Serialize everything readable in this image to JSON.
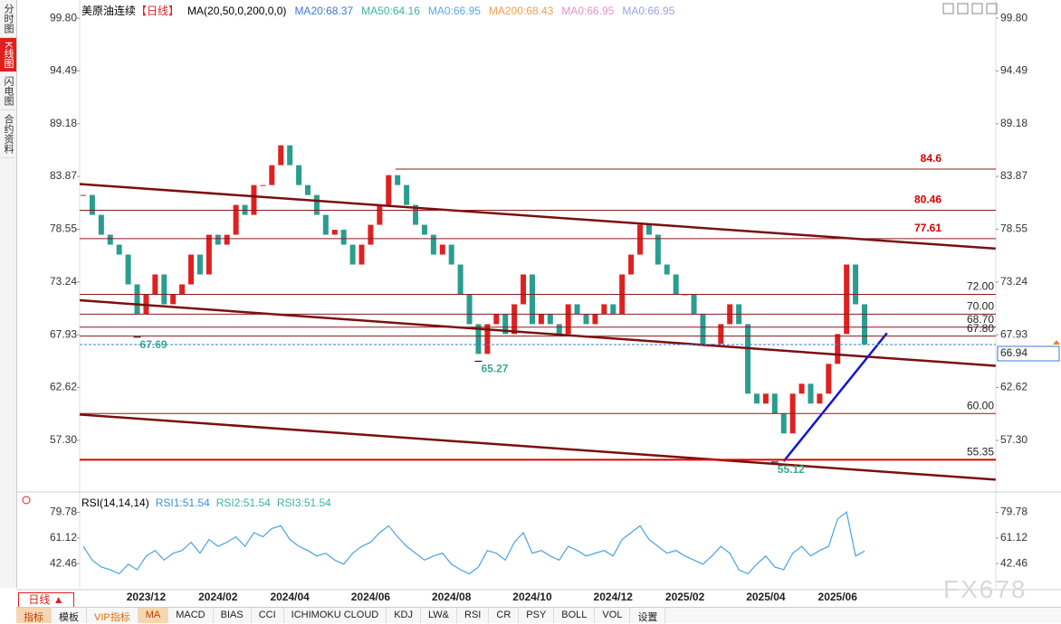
{
  "sidebar_tabs": [
    "分时图",
    "K线图",
    "闪电图",
    "合约资料"
  ],
  "header": {
    "title": "美原油连续",
    "period": "【日线】",
    "indicator": "MA(20,50,0,200,0,0)",
    "legend": [
      {
        "text": "MA20:68.37",
        "color": "#3a7bd5"
      },
      {
        "text": "MA50:64.16",
        "color": "#3cb3a0"
      },
      {
        "text": "MA0:66.95",
        "color": "#5aa8e8"
      },
      {
        "text": "MA200:68.43",
        "color": "#f0a050"
      },
      {
        "text": "MA0:66.95",
        "color": "#e890d0"
      },
      {
        "text": "MA0:66.95",
        "color": "#a0a0e8"
      }
    ]
  },
  "rsi_header": {
    "title": "RSI(14,14,14)",
    "legend": [
      {
        "text": "RSI1:51.54",
        "color": "#3a8fd5"
      },
      {
        "text": "RSI2:51.54",
        "color": "#3cb3a0"
      },
      {
        "text": "RSI3:51.54",
        "color": "#3cb3a0"
      }
    ]
  },
  "period_button": "日线 ▲",
  "toolbar": [
    "指标",
    "模板",
    "VIP指标",
    "MA",
    "MACD",
    "BIAS",
    "CCI",
    "ICHIMOKU CLOUD",
    "KDJ",
    "LW&",
    "RSI",
    "CR",
    "PSY",
    "BOLL",
    "VOL",
    "设置"
  ],
  "watermark": "FX678",
  "chart_data": [
    {
      "type": "candlestick",
      "up_color": "#e02020",
      "down_color": "#2a9d8f",
      "categories": [
        null,
        null,
        null,
        null,
        null,
        null,
        null,
        "2023/12",
        null,
        null,
        null,
        null,
        null,
        null,
        null,
        "2024/02",
        null,
        null,
        null,
        null,
        null,
        null,
        null,
        "2024/04",
        null,
        null,
        null,
        null,
        null,
        null,
        null,
        null,
        "2024/06",
        null,
        null,
        null,
        null,
        null,
        null,
        null,
        null,
        "2024/08",
        null,
        null,
        null,
        null,
        null,
        null,
        null,
        null,
        "2024/10",
        null,
        null,
        null,
        null,
        null,
        null,
        null,
        null,
        "2024/12",
        null,
        null,
        null,
        null,
        null,
        null,
        null,
        "2025/02",
        null,
        null,
        null,
        null,
        null,
        null,
        null,
        null,
        "2025/04",
        null,
        null,
        null,
        null,
        null,
        null,
        null,
        "2025/06",
        null,
        null,
        null
      ],
      "closes": [
        82,
        80,
        78,
        77,
        76,
        73,
        70,
        72,
        74,
        71,
        72,
        73,
        76,
        74,
        78,
        77,
        78,
        81,
        80,
        83,
        83,
        85,
        87,
        85,
        83,
        82,
        80,
        78,
        78.5,
        77,
        75,
        77,
        79,
        81,
        84,
        83,
        81,
        79,
        78,
        76,
        77,
        75,
        72,
        69,
        66,
        69,
        70,
        68,
        71,
        74,
        69,
        70,
        69,
        68,
        71,
        70,
        69,
        70,
        71,
        70,
        74,
        76,
        79,
        78,
        75,
        74,
        72,
        72,
        70,
        67,
        67,
        69,
        71,
        69,
        62,
        61,
        62,
        60,
        58,
        62,
        63,
        61,
        62,
        65,
        68,
        75,
        71,
        66.94
      ],
      "ylim": [
        52.47,
        100.9
      ],
      "yticks": [
        {
          "value": 99.8,
          "label": "99.80"
        },
        94.49,
        89.18,
        83.87,
        78.55,
        73.24,
        67.93,
        62.62,
        {
          "value": 57.3,
          "label": "57.30"
        }
      ],
      "key_levels": [
        84.6,
        80.46,
        77.61
      ],
      "key_level_color": "#d40000",
      "levels": [
        {
          "value": 72,
          "label": "72.00"
        },
        {
          "value": 70,
          "label": "70.00"
        },
        {
          "value": 68.7,
          "label": "68.70"
        },
        {
          "value": 67.8,
          "label": "67.80"
        },
        {
          "value": 60,
          "label": "60.00"
        },
        55.35
      ],
      "level_color": "#8b1a1a",
      "lows": [
        {
          "x": 6,
          "value": 67.69
        },
        {
          "x": 44,
          "value": 65.27
        },
        {
          "x": 77,
          "value": 55.12
        }
      ],
      "low_color": "#3aa88f",
      "trend_lines": [
        {
          "color": "#7a0f0f",
          "points": [
            [
              -0.4,
              83.1
            ],
            [
              101.6,
              76.6
            ]
          ]
        },
        {
          "color": "#7a0f0f",
          "points": [
            [
              -0.4,
              71.4
            ],
            [
              101.6,
              64.8
            ]
          ]
        },
        {
          "color": "#7a0f0f",
          "points": [
            [
              -0.4,
              59.9
            ],
            [
              101.6,
              53.35
            ]
          ]
        },
        {
          "color": "#1515d0",
          "points": [
            [
              78,
              55.2
            ],
            [
              89.5,
              68.1
            ]
          ]
        }
      ],
      "last_color": "#3a7bd5"
    },
    {
      "type": "line",
      "color": "#4aa3df",
      "values": [
        55,
        45,
        40,
        38,
        35,
        42,
        38,
        48,
        52,
        45,
        50,
        52,
        58,
        50,
        60,
        55,
        58,
        62,
        55,
        65,
        62,
        68,
        70,
        60,
        55,
        52,
        48,
        50,
        45,
        42,
        50,
        55,
        58,
        65,
        70,
        62,
        55,
        50,
        45,
        48,
        50,
        42,
        38,
        35,
        40,
        52,
        50,
        45,
        58,
        65,
        50,
        52,
        48,
        45,
        55,
        52,
        48,
        50,
        52,
        48,
        60,
        65,
        70,
        60,
        55,
        50,
        52,
        48,
        45,
        42,
        48,
        55,
        50,
        38,
        35,
        42,
        48,
        40,
        38,
        50,
        55,
        48,
        52,
        55,
        75,
        80,
        48,
        51.54
      ],
      "ylim": [
        24.8,
        92
      ],
      "yticks": [
        79.78,
        61.12,
        42.46
      ]
    }
  ]
}
